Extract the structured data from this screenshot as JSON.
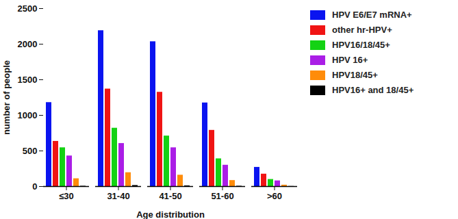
{
  "chart_data": {
    "type": "bar",
    "x_label": "Age distribution",
    "y_label": "number of people",
    "categories": [
      "≤30",
      "31-40",
      "41-50",
      "51-60",
      ">60"
    ],
    "series": [
      {
        "name": "HPV E6/E7 mRNA+",
        "color": "#0a14f0",
        "values": [
          1180,
          2190,
          2035,
          1175,
          270
        ]
      },
      {
        "name": "other hr-HPV+",
        "color": "#f01414",
        "values": [
          635,
          1370,
          1325,
          790,
          175
        ]
      },
      {
        "name": "HPV16/18/45+",
        "color": "#14d214",
        "values": [
          545,
          820,
          710,
          390,
          100
        ]
      },
      {
        "name": "HPV 16+",
        "color": "#aa1ee6",
        "values": [
          430,
          605,
          545,
          300,
          80
        ]
      },
      {
        "name": "HPV18/45+",
        "color": "#ff8c0a",
        "values": [
          110,
          195,
          160,
          85,
          20
        ]
      },
      {
        "name": "HPV16+ and 18/45+",
        "color": "#000000",
        "values": [
          5,
          15,
          10,
          5,
          2
        ]
      }
    ],
    "ylim": [
      0,
      2500
    ],
    "yticks": [
      0,
      500,
      1000,
      1500,
      2000,
      2500
    ],
    "legend": "right",
    "grid": false
  }
}
